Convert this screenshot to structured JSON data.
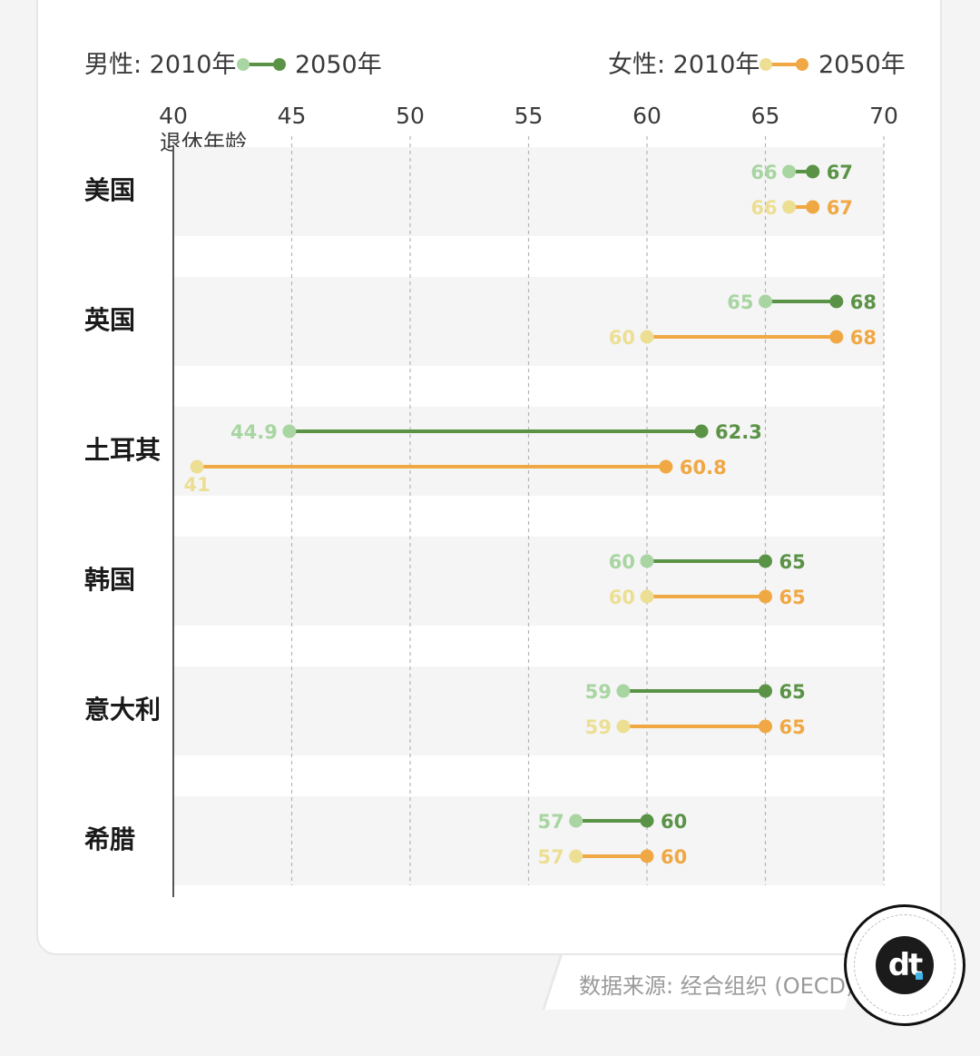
{
  "legend": {
    "male_label": "男性: 2010年",
    "male_end": "2050年",
    "female_label": "女性: 2010年",
    "female_end": "2050年"
  },
  "colors": {
    "male_2010": "#a8d5a2",
    "male_2050": "#5a9346",
    "female_2010": "#ecdf93",
    "female_2050": "#f0a844",
    "band": "#f5f5f5"
  },
  "source": "数据来源: 经合组织 (OECD)",
  "logo": {
    "icon": "dt-logo-icon",
    "text": "dt"
  },
  "chart_data": {
    "type": "dumbbell",
    "ylabel": "退休年龄",
    "xlim": [
      40,
      70
    ],
    "xticks": [
      40,
      45,
      50,
      55,
      60,
      65,
      70
    ],
    "categories": [
      "美国",
      "英国",
      "土耳其",
      "韩国",
      "意大利",
      "希腊"
    ],
    "series": [
      {
        "name": "男性",
        "start_label": "2010年",
        "end_label": "2050年",
        "start": [
          66,
          65,
          44.9,
          60,
          59,
          57
        ],
        "end": [
          67,
          68,
          62.3,
          65,
          65,
          60
        ]
      },
      {
        "name": "女性",
        "start_label": "2010年",
        "end_label": "2050年",
        "start": [
          66,
          60,
          41,
          60,
          59,
          57
        ],
        "end": [
          67,
          68,
          60.8,
          65,
          65,
          60
        ]
      }
    ]
  }
}
